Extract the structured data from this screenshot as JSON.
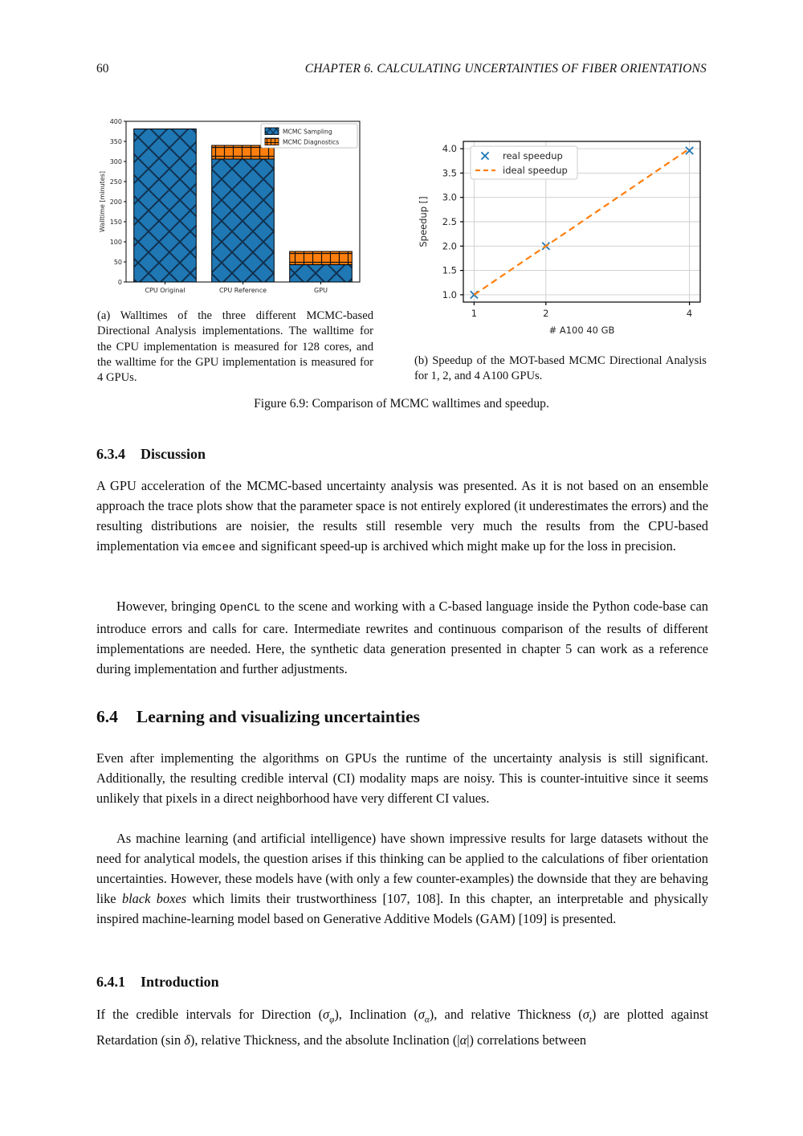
{
  "page": {
    "number": "60",
    "chapter_header": "CHAPTER 6.  CALCULATING UNCERTAINTIES OF FIBER ORIENTATIONS"
  },
  "chart_data": [
    {
      "type": "bar",
      "stacked": true,
      "categories": [
        "CPU Original",
        "CPU Reference",
        "GPU"
      ],
      "series": [
        {
          "name": "MCMC Sampling",
          "values": [
            381,
            306,
            43
          ],
          "color": "#1f77b4",
          "hatch": "x",
          "hatch_color": "#10314f"
        },
        {
          "name": "MCMC Diagnostics",
          "values": [
            0,
            34,
            33
          ],
          "color": "#ff7f0e",
          "hatch": "+",
          "hatch_color": "#111111"
        }
      ],
      "title": "",
      "xlabel": "",
      "ylabel": "Walltime [minutes]",
      "ylim": [
        0,
        400
      ],
      "yticks": [
        0,
        50,
        100,
        150,
        200,
        250,
        300,
        350,
        400
      ],
      "grid": false,
      "legend_position": "upper right"
    },
    {
      "type": "line",
      "series": [
        {
          "name": "real speedup",
          "x": [
            1,
            2,
            4
          ],
          "y": [
            1.0,
            2.0,
            3.96
          ],
          "marker": "x",
          "color": "#1f77b4",
          "line": false
        },
        {
          "name": "ideal speedup",
          "x": [
            1,
            4
          ],
          "y": [
            1.0,
            4.0
          ],
          "marker": null,
          "color": "#ff7f0e",
          "line": true,
          "dashed": true
        }
      ],
      "title": "",
      "xlabel": "# A100 40 GB",
      "ylabel": "Speedup []",
      "xlim": [
        0.85,
        4.15
      ],
      "ylim": [
        0.85,
        4.15
      ],
      "xticks": [
        1,
        2,
        4
      ],
      "yticks": [
        1.0,
        1.5,
        2.0,
        2.5,
        3.0,
        3.5,
        4.0
      ],
      "grid": true,
      "legend_position": "upper left"
    }
  ],
  "figure": {
    "caption_a": "(a) Walltimes of the three different MCMC-based Directional Analysis implementations. The walltime for the CPU implementation is measured for 128 cores, and the walltime for the GPU implementation is measured for 4 GPUs.",
    "caption_b": "(b) Speedup of the MOT-based MCMC Directional Analysis for 1, 2, and 4 A100 GPUs.",
    "main_caption": "Figure 6.9: Comparison of MCMC walltimes and speedup."
  },
  "sections": {
    "s634": {
      "number": "6.3.4",
      "title": "Discussion",
      "p1": [
        {
          "t": "A GPU acceleration of the MCMC-based uncertainty analysis was presented.  As it is not based on an ensemble approach the trace plots show that the parameter space is not entirely explored (it underestimates the errors) and the resulting distributions are noisier, the results still resemble very much the results from the CPU-based implementation via "
        },
        {
          "t": "emcee",
          "s": "code"
        },
        {
          "t": " and significant speed-up is archived which might make up for the loss in precision."
        }
      ],
      "p2": [
        {
          "t": "However, bringing "
        },
        {
          "t": "OpenCL",
          "s": "code"
        },
        {
          "t": " to the scene and working with a C-based language inside the Python code-base can introduce errors and calls for care.  Intermediate rewrites and continuous comparison of the results of different implementations are needed.  Here, the synthetic data generation presented in chapter 5 can work as a reference during implementation and further adjustments."
        }
      ]
    },
    "s64": {
      "number": "6.4",
      "title": "Learning and visualizing uncertainties",
      "p1": [
        {
          "t": "Even after implementing the algorithms on GPUs the runtime of the uncertainty analysis is still significant.  Additionally, the resulting credible interval (CI) modality maps are noisy.  This is counter-intuitive since it seems unlikely that pixels in a direct neighborhood have very different CI values."
        }
      ],
      "p2": [
        {
          "t": "As machine learning (and artificial intelligence) have shown impressive results for large datasets without the need for analytical models, the question arises if this thinking can be applied to the calculations of fiber orientation uncertainties.  However, these models have (with only a few counter-examples) the downside that they are behaving like "
        },
        {
          "t": "black boxes",
          "s": "i"
        },
        {
          "t": " which limits their trustworthiness [107, 108].  In this chapter, an interpretable and physically inspired machine-learning model based on Generative Additive Models (GAM) [109] is presented."
        }
      ]
    },
    "s641": {
      "number": "6.4.1",
      "title": "Introduction",
      "p1": [
        {
          "t": "If the credible intervals for Direction ("
        },
        {
          "t": "σ",
          "s": "i"
        },
        {
          "t": "φ",
          "s": "sub"
        },
        {
          "t": "), Inclination ("
        },
        {
          "t": "σ",
          "s": "i"
        },
        {
          "t": "α",
          "s": "sub"
        },
        {
          "t": "), and relative Thickness ("
        },
        {
          "t": "σ",
          "s": "i"
        },
        {
          "t": "t",
          "s": "sub"
        },
        {
          "t": ") are plotted against Retardation (sin "
        },
        {
          "t": "δ",
          "s": "i"
        },
        {
          "t": "), relative Thickness, and the absolute Inclination (|"
        },
        {
          "t": "α",
          "s": "i"
        },
        {
          "t": "|) correlations between"
        }
      ]
    }
  }
}
